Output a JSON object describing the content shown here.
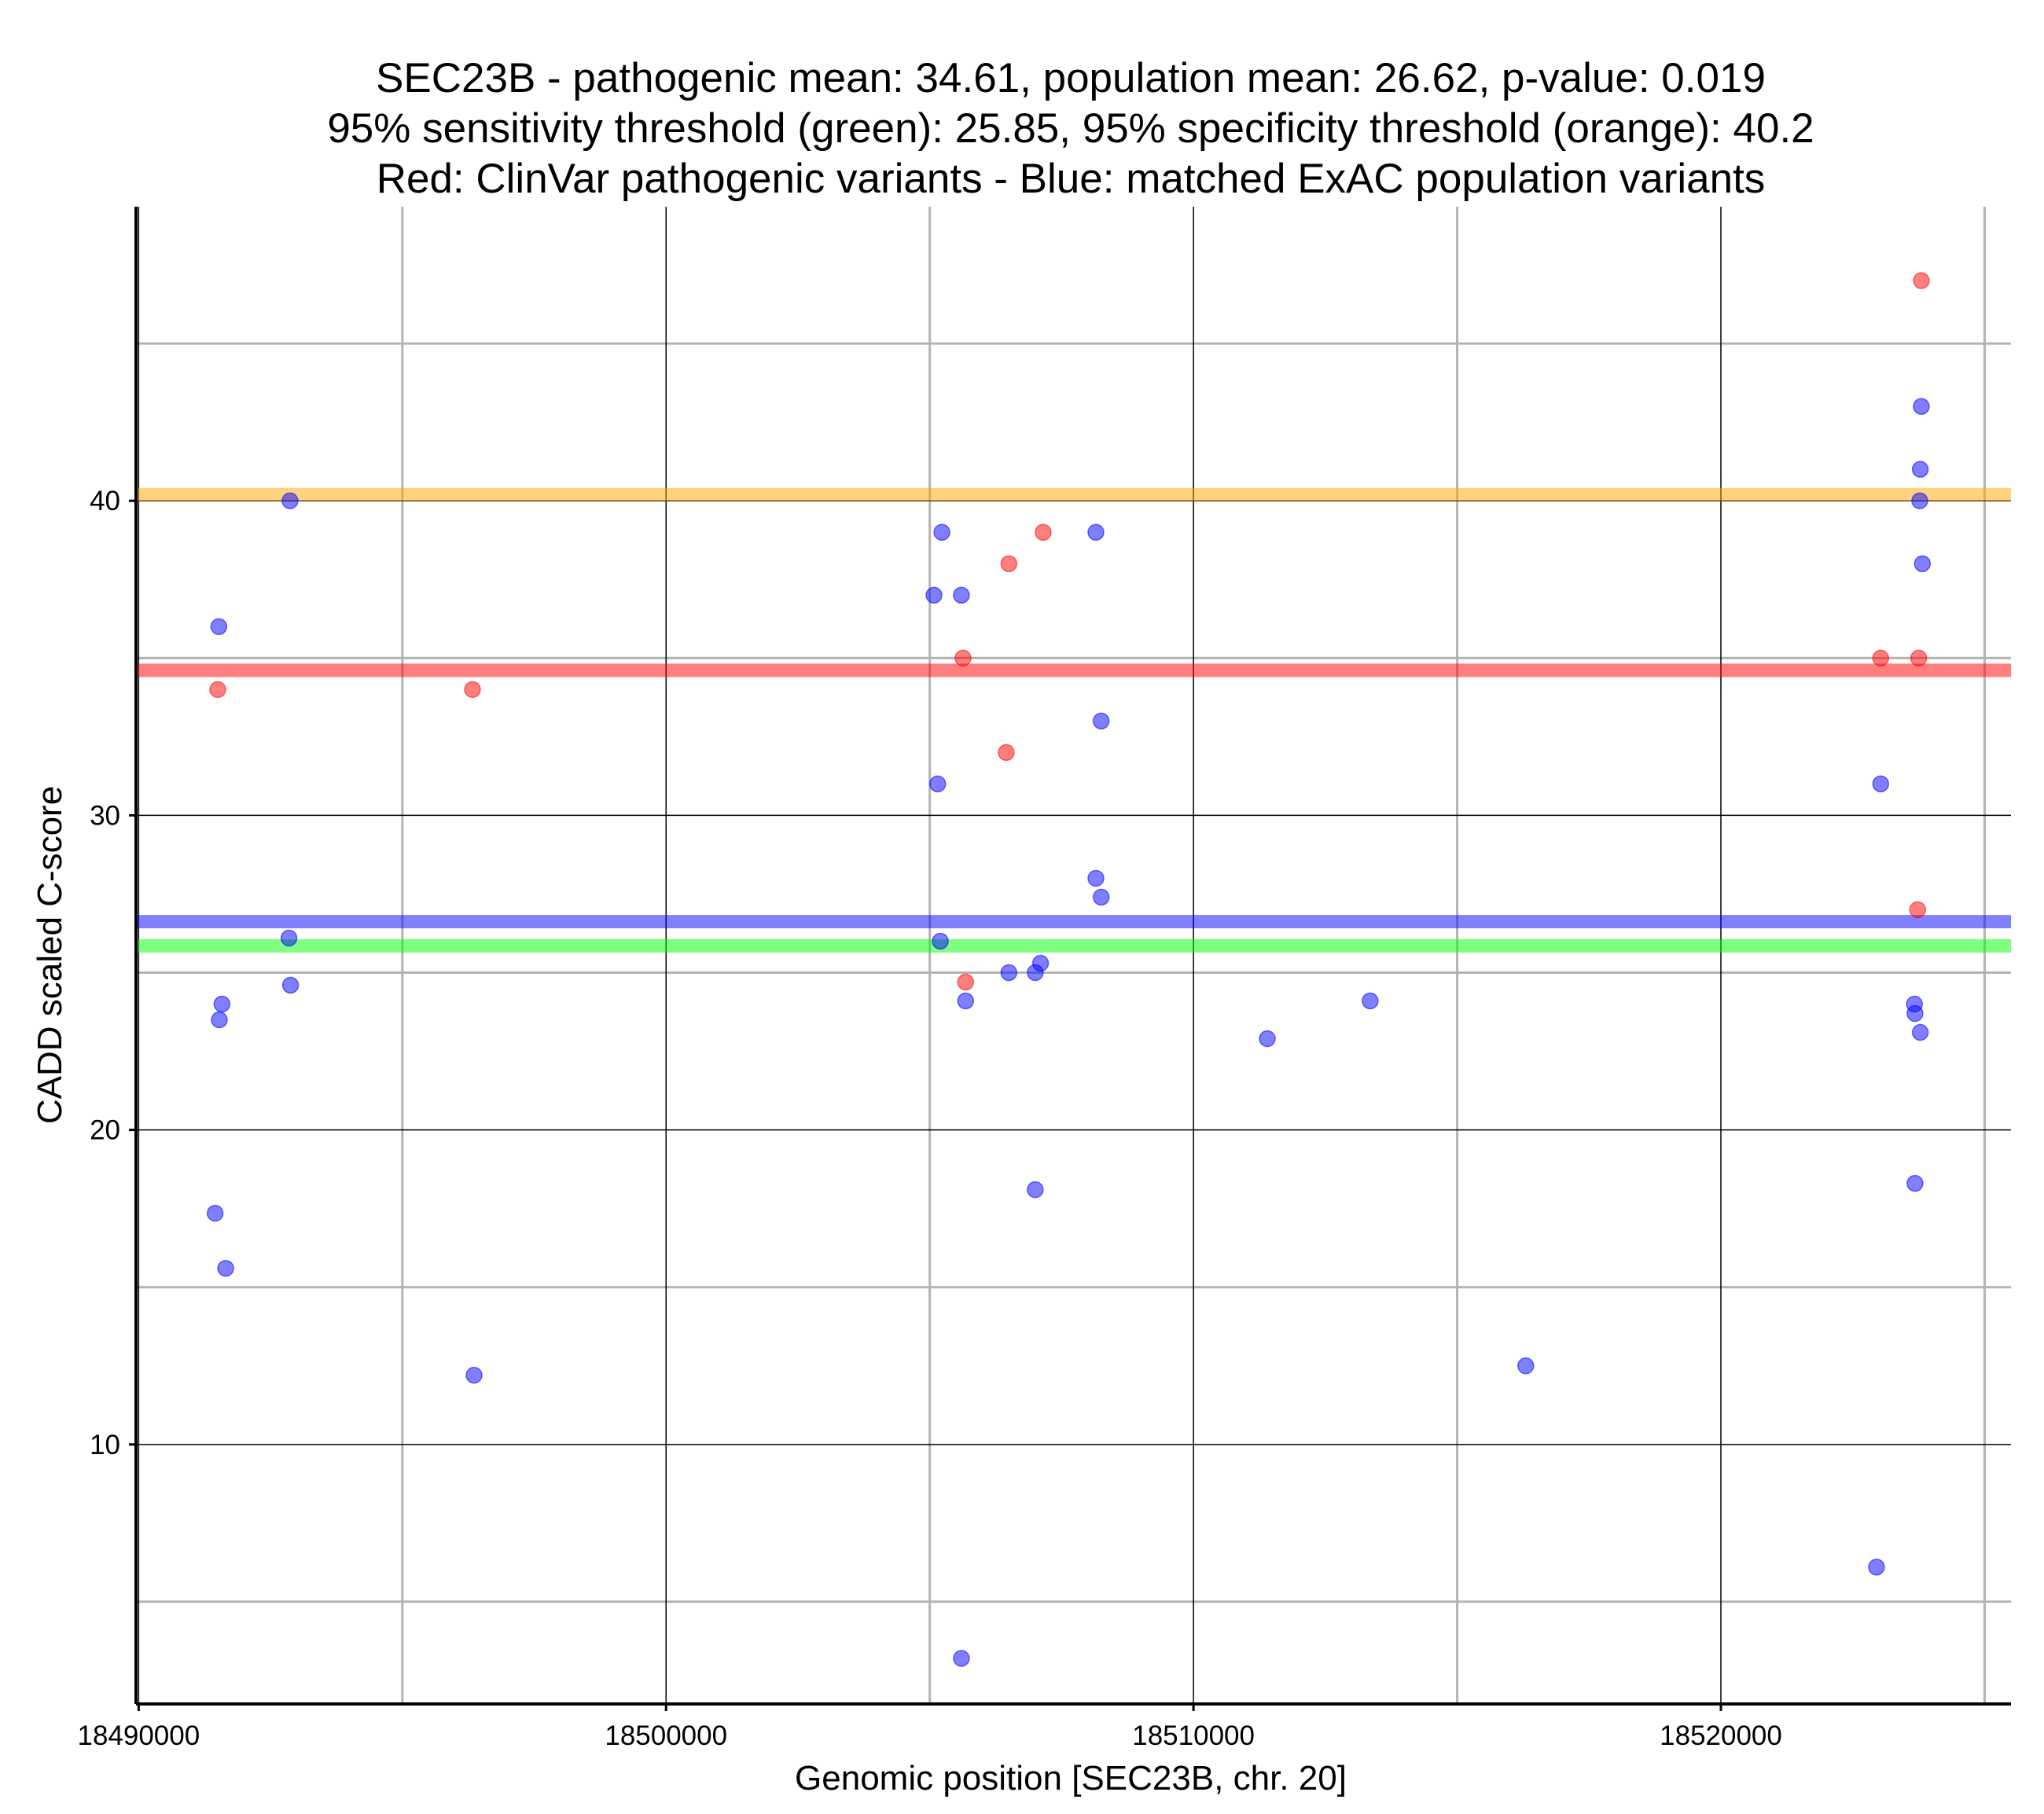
{
  "chart_data": {
    "type": "scatter",
    "title_lines": [
      "SEC23B - pathogenic mean: 34.61, population mean: 26.62, p-value: 0.019",
      "95% sensitivity threshold (green): 25.85, 95% specificity threshold (orange): 40.2",
      "Red: ClinVar pathogenic variants - Blue: matched ExAC population variants"
    ],
    "xlabel": "Genomic position [SEC23B, chr. 20]",
    "ylabel": "CADD scaled C-score",
    "xlim": [
      18489950,
      18525500
    ],
    "ylim": [
      1.75,
      49.35
    ],
    "x_ticks": [
      18490000,
      18500000,
      18510000,
      18520000
    ],
    "x_tick_labels": [
      "18490000",
      "18500000",
      "18510000",
      "18520000"
    ],
    "y_ticks": [
      10,
      20,
      30,
      40
    ],
    "y_tick_labels": [
      "10",
      "20",
      "30",
      "40"
    ],
    "x_minor_gridlines": [
      18495000,
      18505000,
      18515000,
      18525000
    ],
    "y_minor_gridlines": [
      5,
      15,
      25,
      35,
      45
    ],
    "grid": true,
    "reference_lines": [
      {
        "name": "specificity threshold",
        "value": 40.2,
        "color": "#ffa500"
      },
      {
        "name": "pathogenic mean",
        "value": 34.61,
        "color": "#ff0000"
      },
      {
        "name": "population mean",
        "value": 26.62,
        "color": "#0000ff"
      },
      {
        "name": "sensitivity threshold",
        "value": 25.85,
        "color": "#00ff00"
      }
    ],
    "series": [
      {
        "name": "ClinVar pathogenic variants",
        "color": "#ff0000",
        "points": [
          {
            "x": 18491500,
            "y": 34
          },
          {
            "x": 18496330,
            "y": 34
          },
          {
            "x": 18505630,
            "y": 35
          },
          {
            "x": 18505680,
            "y": 24.7
          },
          {
            "x": 18506450,
            "y": 32
          },
          {
            "x": 18506500,
            "y": 38
          },
          {
            "x": 18507150,
            "y": 39
          },
          {
            "x": 18523030,
            "y": 35
          },
          {
            "x": 18523730,
            "y": 27
          },
          {
            "x": 18523750,
            "y": 35
          },
          {
            "x": 18523800,
            "y": 47
          }
        ]
      },
      {
        "name": "matched ExAC population variants",
        "color": "#0000ff",
        "points": [
          {
            "x": 18491450,
            "y": 17.35
          },
          {
            "x": 18491520,
            "y": 36
          },
          {
            "x": 18491530,
            "y": 23.5
          },
          {
            "x": 18491580,
            "y": 24
          },
          {
            "x": 18491650,
            "y": 15.6
          },
          {
            "x": 18492850,
            "y": 26.1
          },
          {
            "x": 18492870,
            "y": 40
          },
          {
            "x": 18492880,
            "y": 24.6
          },
          {
            "x": 18496360,
            "y": 12.2
          },
          {
            "x": 18505080,
            "y": 37
          },
          {
            "x": 18505150,
            "y": 31
          },
          {
            "x": 18505200,
            "y": 26
          },
          {
            "x": 18505230,
            "y": 39
          },
          {
            "x": 18505600,
            "y": 37
          },
          {
            "x": 18505600,
            "y": 3.2
          },
          {
            "x": 18505680,
            "y": 24.1
          },
          {
            "x": 18506500,
            "y": 25
          },
          {
            "x": 18507000,
            "y": 25
          },
          {
            "x": 18507000,
            "y": 18.1
          },
          {
            "x": 18507100,
            "y": 25.3
          },
          {
            "x": 18508150,
            "y": 39
          },
          {
            "x": 18508150,
            "y": 28
          },
          {
            "x": 18508250,
            "y": 33
          },
          {
            "x": 18508250,
            "y": 27.4
          },
          {
            "x": 18511400,
            "y": 22.9
          },
          {
            "x": 18513350,
            "y": 24.1
          },
          {
            "x": 18516300,
            "y": 12.5
          },
          {
            "x": 18522950,
            "y": 6.1
          },
          {
            "x": 18523030,
            "y": 31
          },
          {
            "x": 18523670,
            "y": 24
          },
          {
            "x": 18523680,
            "y": 23.7
          },
          {
            "x": 18523680,
            "y": 18.3
          },
          {
            "x": 18523780,
            "y": 23.1
          },
          {
            "x": 18523770,
            "y": 40
          },
          {
            "x": 18523780,
            "y": 41
          },
          {
            "x": 18523800,
            "y": 43
          },
          {
            "x": 18523820,
            "y": 38
          }
        ]
      }
    ]
  }
}
